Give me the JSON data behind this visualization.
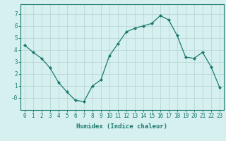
{
  "x": [
    0,
    1,
    2,
    3,
    4,
    5,
    6,
    7,
    8,
    9,
    10,
    11,
    12,
    13,
    14,
    15,
    16,
    17,
    18,
    19,
    20,
    21,
    22,
    23
  ],
  "y": [
    4.4,
    3.8,
    3.3,
    2.5,
    1.3,
    0.5,
    -0.2,
    -0.3,
    1.0,
    1.5,
    3.5,
    4.5,
    5.5,
    5.8,
    6.0,
    6.2,
    6.85,
    6.5,
    5.2,
    3.4,
    3.3,
    3.8,
    2.6,
    0.9
  ],
  "line_color": "#1a7a6e",
  "marker": "D",
  "marker_size": 2.0,
  "bg_color": "#d6f0ef",
  "grid_color": "#b8d8d5",
  "xlabel": "Humidex (Indice chaleur)",
  "xlim": [
    -0.5,
    23.5
  ],
  "ylim": [
    -1.0,
    7.8
  ],
  "yticks": [
    0,
    1,
    2,
    3,
    4,
    5,
    6,
    7
  ],
  "ytick_labels": [
    "-0",
    "1",
    "2",
    "3",
    "4",
    "5",
    "6",
    "7"
  ],
  "xticks": [
    0,
    1,
    2,
    3,
    4,
    5,
    6,
    7,
    8,
    9,
    10,
    11,
    12,
    13,
    14,
    15,
    16,
    17,
    18,
    19,
    20,
    21,
    22,
    23
  ],
  "axis_color": "#1a7a6e",
  "tick_fontsize": 5.5,
  "xlabel_fontsize": 6.5,
  "linewidth": 0.9
}
